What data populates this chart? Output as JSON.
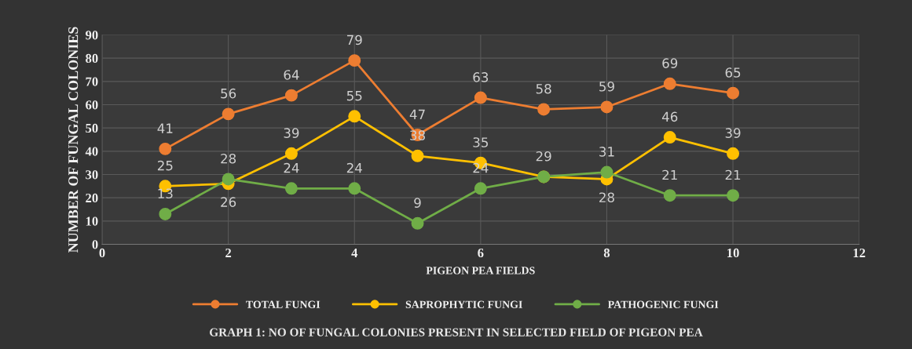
{
  "chart_data": {
    "type": "line",
    "title": "GRAPH 1: NO OF FUNGAL COLONIES PRESENT IN SELECTED FIELD OF PIGEON PEA",
    "xlabel": "PIGEON PEA FIELDS",
    "ylabel": "NUMBER OF FUNGAL COLONIES",
    "x": [
      1,
      2,
      3,
      4,
      5,
      6,
      7,
      8,
      9,
      10
    ],
    "series": [
      {
        "name": "TOTAL FUNGI",
        "color": "#ed7d31",
        "values": [
          41,
          56,
          64,
          79,
          47,
          63,
          58,
          59,
          69,
          65
        ]
      },
      {
        "name": "SAPROPHYTIC FUNGI",
        "color": "#ffc000",
        "values": [
          25,
          26,
          39,
          55,
          38,
          35,
          29,
          28,
          46,
          39
        ]
      },
      {
        "name": "PATHOGENIC FUNGI",
        "color": "#70ad47",
        "values": [
          13,
          28,
          24,
          24,
          9,
          24,
          29,
          31,
          21,
          21
        ],
        "value_labels": [
          "13",
          "28",
          "24",
          "24",
          "9",
          "24",
          null,
          "31",
          "21",
          "21"
        ]
      }
    ],
    "xlim": [
      0,
      12
    ],
    "xticks": [
      0,
      2,
      4,
      6,
      8,
      10,
      12
    ],
    "ylim": [
      0,
      90
    ],
    "yticks": [
      0,
      10,
      20,
      30,
      40,
      50,
      60,
      70,
      80,
      90
    ],
    "grid": true,
    "legend": "bottom",
    "marker": "circle",
    "line_style": "solid",
    "data_labels": true
  }
}
